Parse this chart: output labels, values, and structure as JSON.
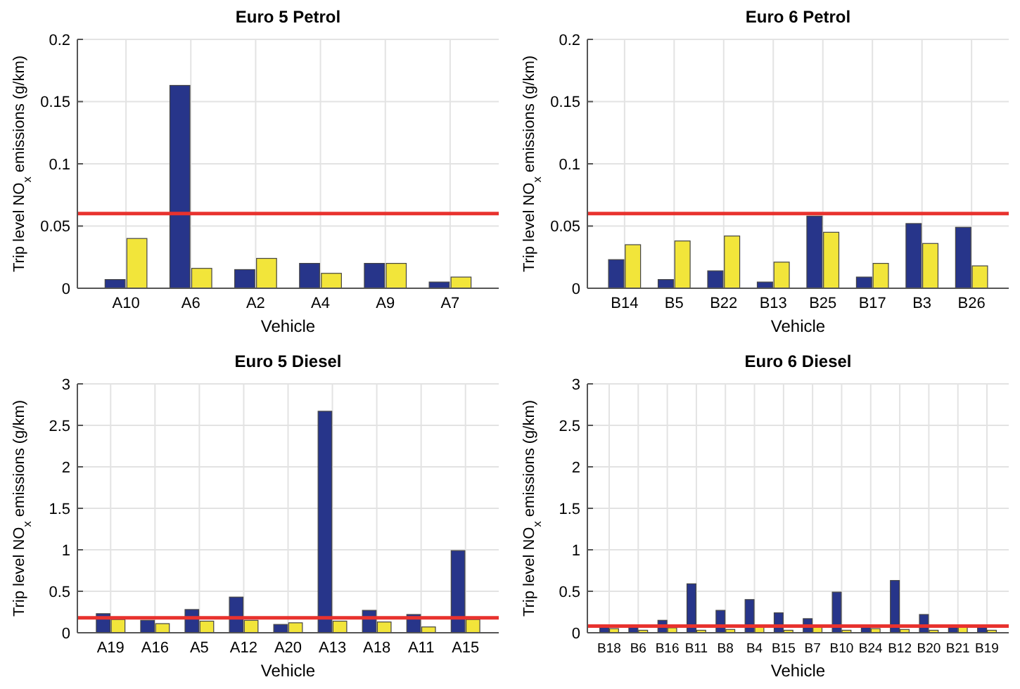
{
  "chart_data": [
    {
      "type": "bar",
      "title": "Euro 5 Petrol",
      "xlabel": "Vehicle",
      "ylabel": "Trip level NO$_{x}$ emissions (g/km)",
      "categories": [
        "A10",
        "A6",
        "A2",
        "A4",
        "A9",
        "A7"
      ],
      "series": [
        {
          "color": "#27358a",
          "values": [
            0.007,
            0.163,
            0.015,
            0.02,
            0.02,
            0.005
          ]
        },
        {
          "color": "#f2e53a",
          "values": [
            0.04,
            0.016,
            0.024,
            0.012,
            0.02,
            0.009
          ]
        }
      ],
      "ylim": [
        0,
        0.2
      ],
      "yticks": [
        0,
        0.05,
        0.1,
        0.15,
        0.2
      ],
      "grid": true,
      "ref_lines": [
        {
          "axis": "y",
          "value": 0.06,
          "color": "#e8322e"
        }
      ]
    },
    {
      "type": "bar",
      "title": "Euro 6 Petrol",
      "xlabel": "Vehicle",
      "ylabel": "Trip level NO$_{x}$ emissions (g/km)",
      "categories": [
        "B14",
        "B5",
        "B22",
        "B13",
        "B25",
        "B17",
        "B3",
        "B26"
      ],
      "series": [
        {
          "color": "#27358a",
          "values": [
            0.023,
            0.007,
            0.014,
            0.005,
            0.058,
            0.009,
            0.052,
            0.049
          ]
        },
        {
          "color": "#f2e53a",
          "values": [
            0.035,
            0.038,
            0.042,
            0.021,
            0.045,
            0.02,
            0.036,
            0.018
          ]
        }
      ],
      "ylim": [
        0,
        0.2
      ],
      "yticks": [
        0,
        0.05,
        0.1,
        0.15,
        0.2
      ],
      "grid": true,
      "ref_lines": [
        {
          "axis": "y",
          "value": 0.06,
          "color": "#e8322e"
        }
      ]
    },
    {
      "type": "bar",
      "title": "Euro 5 Diesel",
      "xlabel": "Vehicle",
      "ylabel": "Trip level NO$_{x}$ emissions (g/km)",
      "categories": [
        "A19",
        "A16",
        "A5",
        "A12",
        "A20",
        "A13",
        "A18",
        "A11",
        "A15"
      ],
      "series": [
        {
          "color": "#27358a",
          "values": [
            0.23,
            0.15,
            0.28,
            0.43,
            0.1,
            2.67,
            0.27,
            0.22,
            0.99
          ]
        },
        {
          "color": "#f2e53a",
          "values": [
            0.16,
            0.11,
            0.14,
            0.15,
            0.12,
            0.14,
            0.13,
            0.07,
            0.16
          ]
        }
      ],
      "ylim": [
        0,
        3
      ],
      "yticks": [
        0,
        0.5,
        1,
        1.5,
        2,
        2.5,
        3
      ],
      "grid": true,
      "ref_lines": [
        {
          "axis": "y",
          "value": 0.18,
          "color": "#e8322e"
        }
      ]
    },
    {
      "type": "bar",
      "title": "Euro 6 Diesel",
      "xlabel": "Vehicle",
      "ylabel": "Trip level NO$_{x}$ emissions (g/km)",
      "categories": [
        "B18",
        "B6",
        "B16",
        "B11",
        "B8",
        "B4",
        "B15",
        "B7",
        "B10",
        "B24",
        "B12",
        "B20",
        "B21",
        "B19"
      ],
      "series": [
        {
          "color": "#27358a",
          "values": [
            0.07,
            0.07,
            0.15,
            0.59,
            0.27,
            0.4,
            0.24,
            0.17,
            0.49,
            0.07,
            0.63,
            0.22,
            0.07,
            0.07
          ]
        },
        {
          "color": "#f2e53a",
          "values": [
            0.05,
            0.03,
            0.06,
            0.03,
            0.04,
            0.07,
            0.03,
            0.07,
            0.03,
            0.05,
            0.04,
            0.03,
            0.07,
            0.03
          ]
        }
      ],
      "ylim": [
        0,
        3
      ],
      "yticks": [
        0,
        0.5,
        1,
        1.5,
        2,
        2.5,
        3
      ],
      "grid": true,
      "ref_lines": [
        {
          "axis": "y",
          "value": 0.08,
          "color": "#e8322e"
        }
      ]
    }
  ]
}
